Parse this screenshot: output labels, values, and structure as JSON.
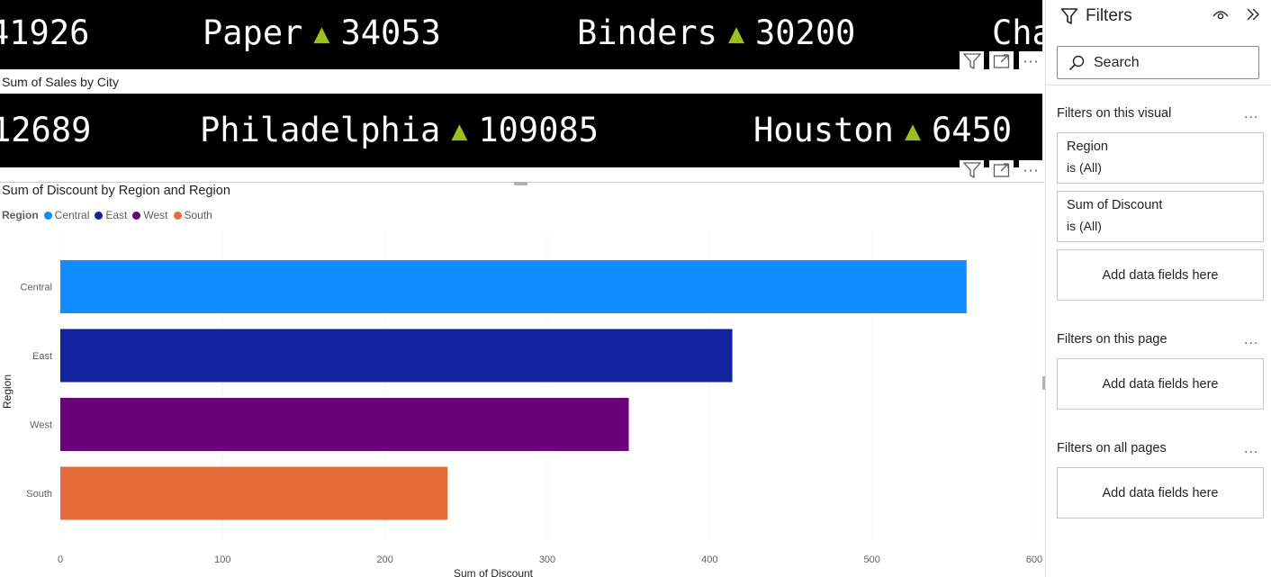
{
  "ticker_category": {
    "items": [
      {
        "label": "41926",
        "arrow": "▲",
        "value": ""
      },
      {
        "label": "Paper",
        "arrow": "▲",
        "value": "34053"
      },
      {
        "label": "Binders",
        "arrow": "▲",
        "value": "30200"
      },
      {
        "label": "Cha",
        "arrow": "",
        "value": ""
      }
    ]
  },
  "ticker_city": {
    "title": "Sum of Sales by City",
    "items": [
      {
        "label": "12689",
        "arrow": "",
        "value": ""
      },
      {
        "label": "Philadelphia",
        "arrow": "▲",
        "value": "109085"
      },
      {
        "label": "Houston",
        "arrow": "▲",
        "value": "6450"
      }
    ]
  },
  "discount_visual": {
    "title": "Sum of Discount by Region and Region",
    "legend_title": "Region",
    "legend": [
      {
        "name": "Central",
        "color": "#118dff"
      },
      {
        "name": "East",
        "color": "#12239e"
      },
      {
        "name": "West",
        "color": "#6b007b"
      },
      {
        "name": "South",
        "color": "#e66c37"
      }
    ]
  },
  "chart_data": {
    "type": "bar",
    "orientation": "horizontal",
    "title": "Sum of Discount by Region and Region",
    "xlabel": "Sum of Discount",
    "ylabel": "Region",
    "categories": [
      "Central",
      "East",
      "West",
      "South"
    ],
    "values": [
      558.3,
      414.0,
      350.2,
      238.6
    ],
    "colors": [
      "#118dff",
      "#12239e",
      "#6b007b",
      "#e66c37"
    ],
    "xlim": [
      0,
      600
    ],
    "xticks": [
      0,
      100,
      200,
      300,
      400,
      500,
      600
    ],
    "grid": true,
    "legend_position": "top-left"
  },
  "filters_pane": {
    "title": "Filters",
    "search_placeholder": "Search",
    "sections": {
      "visual": {
        "label": "Filters on this visual",
        "more": "...",
        "cards": [
          {
            "name": "Region",
            "state": "is (All)"
          },
          {
            "name": "Sum of Discount",
            "state": "is (All)"
          }
        ],
        "add_label": "Add data fields here"
      },
      "page": {
        "label": "Filters on this page",
        "more": "...",
        "add_label": "Add data fields here"
      },
      "all": {
        "label": "Filters on all pages",
        "more": "...",
        "add_label": "Add data fields here"
      }
    }
  },
  "visual_header": {
    "more": "···"
  }
}
